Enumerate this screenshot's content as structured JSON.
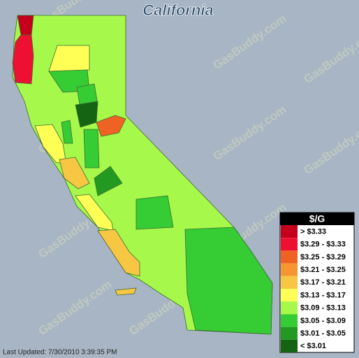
{
  "title": "California",
  "legend": {
    "title": "$/G",
    "items": [
      {
        "label": "> $3.33",
        "color": "#c4001c"
      },
      {
        "label": "$3.29 - $3.33",
        "color": "#ee1033"
      },
      {
        "label": "$3.25 - $3.29",
        "color": "#f06224"
      },
      {
        "label": "$3.21 - $3.25",
        "color": "#f59632"
      },
      {
        "label": "$3.17 - $3.21",
        "color": "#f7c744"
      },
      {
        "label": "$3.13 - $3.17",
        "color": "#ffff55"
      },
      {
        "label": "$3.09 - $3.13",
        "color": "#a6f94a"
      },
      {
        "label": "$3.05 - $3.09",
        "color": "#36cc33"
      },
      {
        "label": "$3.01 - $3.05",
        "color": "#229a22"
      },
      {
        "label": "< $3.01",
        "color": "#146414"
      }
    ]
  },
  "last_updated": "Last Updated: 7/30/2010 3:39:35 PM",
  "watermark": "GasBuddy.com"
}
